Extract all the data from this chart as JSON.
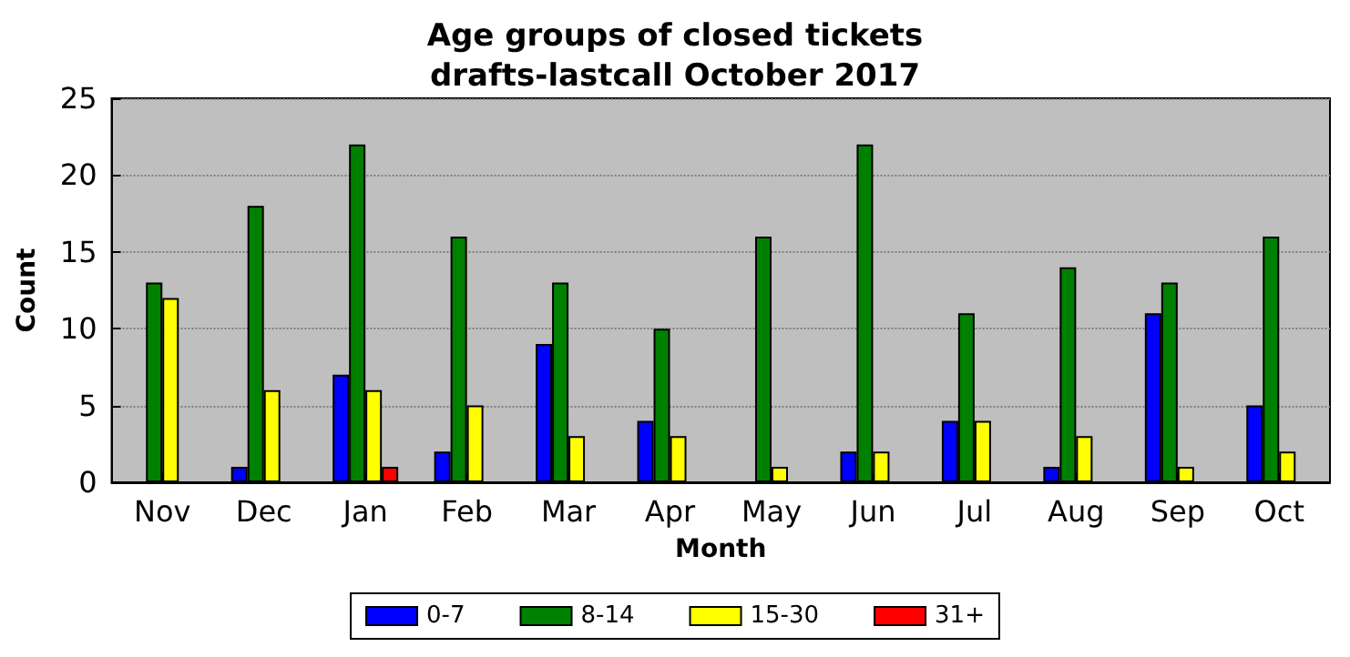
{
  "chart_data": {
    "type": "bar",
    "title": "Age groups of closed tickets\ndrafts-lastcall October 2017",
    "xlabel": "Month",
    "ylabel": "Count",
    "categories": [
      "Nov",
      "Dec",
      "Jan",
      "Feb",
      "Mar",
      "Apr",
      "May",
      "Jun",
      "Jul",
      "Aug",
      "Sep",
      "Oct"
    ],
    "series": [
      {
        "name": "0-7",
        "color": "#0000ff",
        "values": [
          0,
          1,
          7,
          2,
          9,
          4,
          0,
          2,
          4,
          1,
          11,
          5
        ]
      },
      {
        "name": "8-14",
        "color": "#008000",
        "values": [
          13,
          18,
          22,
          16,
          13,
          10,
          16,
          22,
          11,
          14,
          13,
          16
        ]
      },
      {
        "name": "15-30",
        "color": "#ffff00",
        "values": [
          12,
          6,
          6,
          5,
          3,
          3,
          1,
          2,
          4,
          3,
          1,
          2
        ]
      },
      {
        "name": "31+",
        "color": "#ff0000",
        "values": [
          0,
          0,
          1,
          0,
          0,
          0,
          0,
          0,
          0,
          0,
          0,
          0
        ]
      }
    ],
    "ylim": [
      0,
      25
    ],
    "yticks": [
      0,
      5,
      10,
      15,
      20,
      25
    ],
    "grid": "y",
    "legend": "bottom"
  }
}
